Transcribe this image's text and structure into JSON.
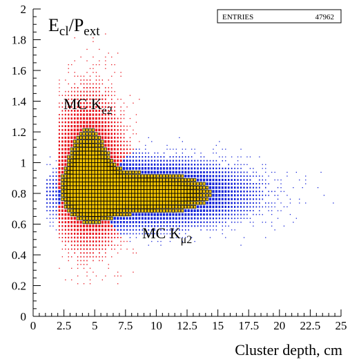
{
  "chart_data": {
    "type": "heatmap",
    "title": "",
    "xlabel": "Cluster depth, cm",
    "ylabel": "",
    "xlim": [
      0,
      25
    ],
    "ylim": [
      0,
      2
    ],
    "x_ticks": [
      "0",
      "2.5",
      "5",
      "7.5",
      "10",
      "12.5",
      "15",
      "17.5",
      "20",
      "22.5",
      "25"
    ],
    "y_ticks": [
      "0",
      "0.2",
      "0.4",
      "0.6",
      "0.8",
      "1",
      "1.2",
      "1.4",
      "1.6",
      "1.8",
      "2"
    ],
    "grid": false,
    "stats_box": {
      "label": "ENTRIES",
      "value": "47962"
    },
    "annotations": {
      "y_quantity": {
        "main": "E",
        "sub1": "cl",
        "sep": "/P",
        "sub2": "ext"
      },
      "ke2": {
        "main": "MC K",
        "sub": "e2"
      },
      "kmu2": {
        "main": "MC K",
        "sub": "μ2"
      }
    },
    "series": [
      {
        "name": "MC Ke2",
        "color": "#e8101a",
        "peak": {
          "x": 4.5,
          "y": 0.95
        },
        "sigma": {
          "x": 1.6,
          "y": 0.28
        },
        "x_range": [
          2,
          11
        ],
        "y_range": [
          0.2,
          1.85
        ]
      },
      {
        "name": "MC Kμ2",
        "color": "#1020d8",
        "peak": {
          "x": 9.5,
          "y": 0.8
        },
        "sigma": {
          "x": 4.5,
          "y": 0.12
        },
        "x_range": [
          1,
          25
        ],
        "y_range": [
          0.2,
          1.25
        ]
      }
    ],
    "core_color": "#f5c400"
  }
}
